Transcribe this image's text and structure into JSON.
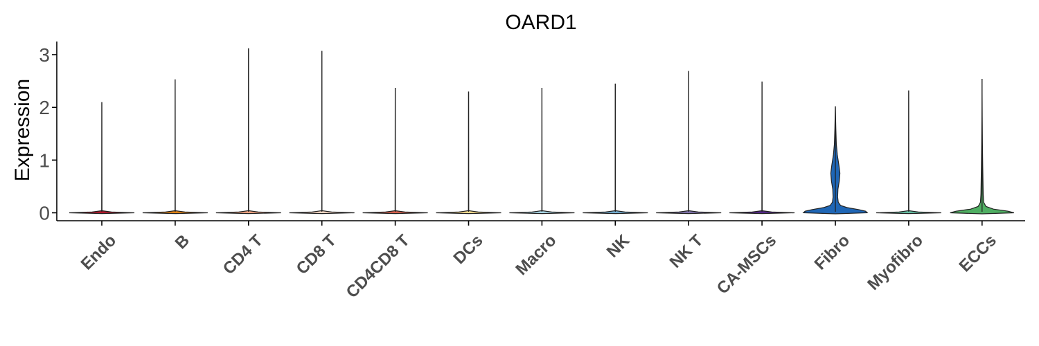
{
  "chart_data": {
    "type": "violin",
    "title": "OARD1",
    "xlabel": "",
    "ylabel": "Expression",
    "ylim": [
      -0.15,
      3.3
    ],
    "yticks": [
      0,
      1,
      2,
      3
    ],
    "categories": [
      "Endo",
      "B",
      "CD4 T",
      "CD8 T",
      "CD4CD8 T",
      "DCs",
      "Macro",
      "NK",
      "NK T",
      "CA-MSCs",
      "Fibro",
      "Myofibro",
      "ECCs"
    ],
    "max_values": [
      2.1,
      2.53,
      3.12,
      3.07,
      2.37,
      2.3,
      2.37,
      2.45,
      2.69,
      2.49,
      2.02,
      2.32,
      2.54
    ],
    "fill_colors": [
      "#B2182B",
      "#E08214",
      "#F4A582",
      "#FDDBC7",
      "#D6604D",
      "#FEE090",
      "#ABD9E9",
      "#74ADD1",
      "#8073AC",
      "#542788",
      "#1F66B5",
      "#66C2A5",
      "#4FAE62"
    ],
    "grid": false,
    "legend": "none"
  }
}
